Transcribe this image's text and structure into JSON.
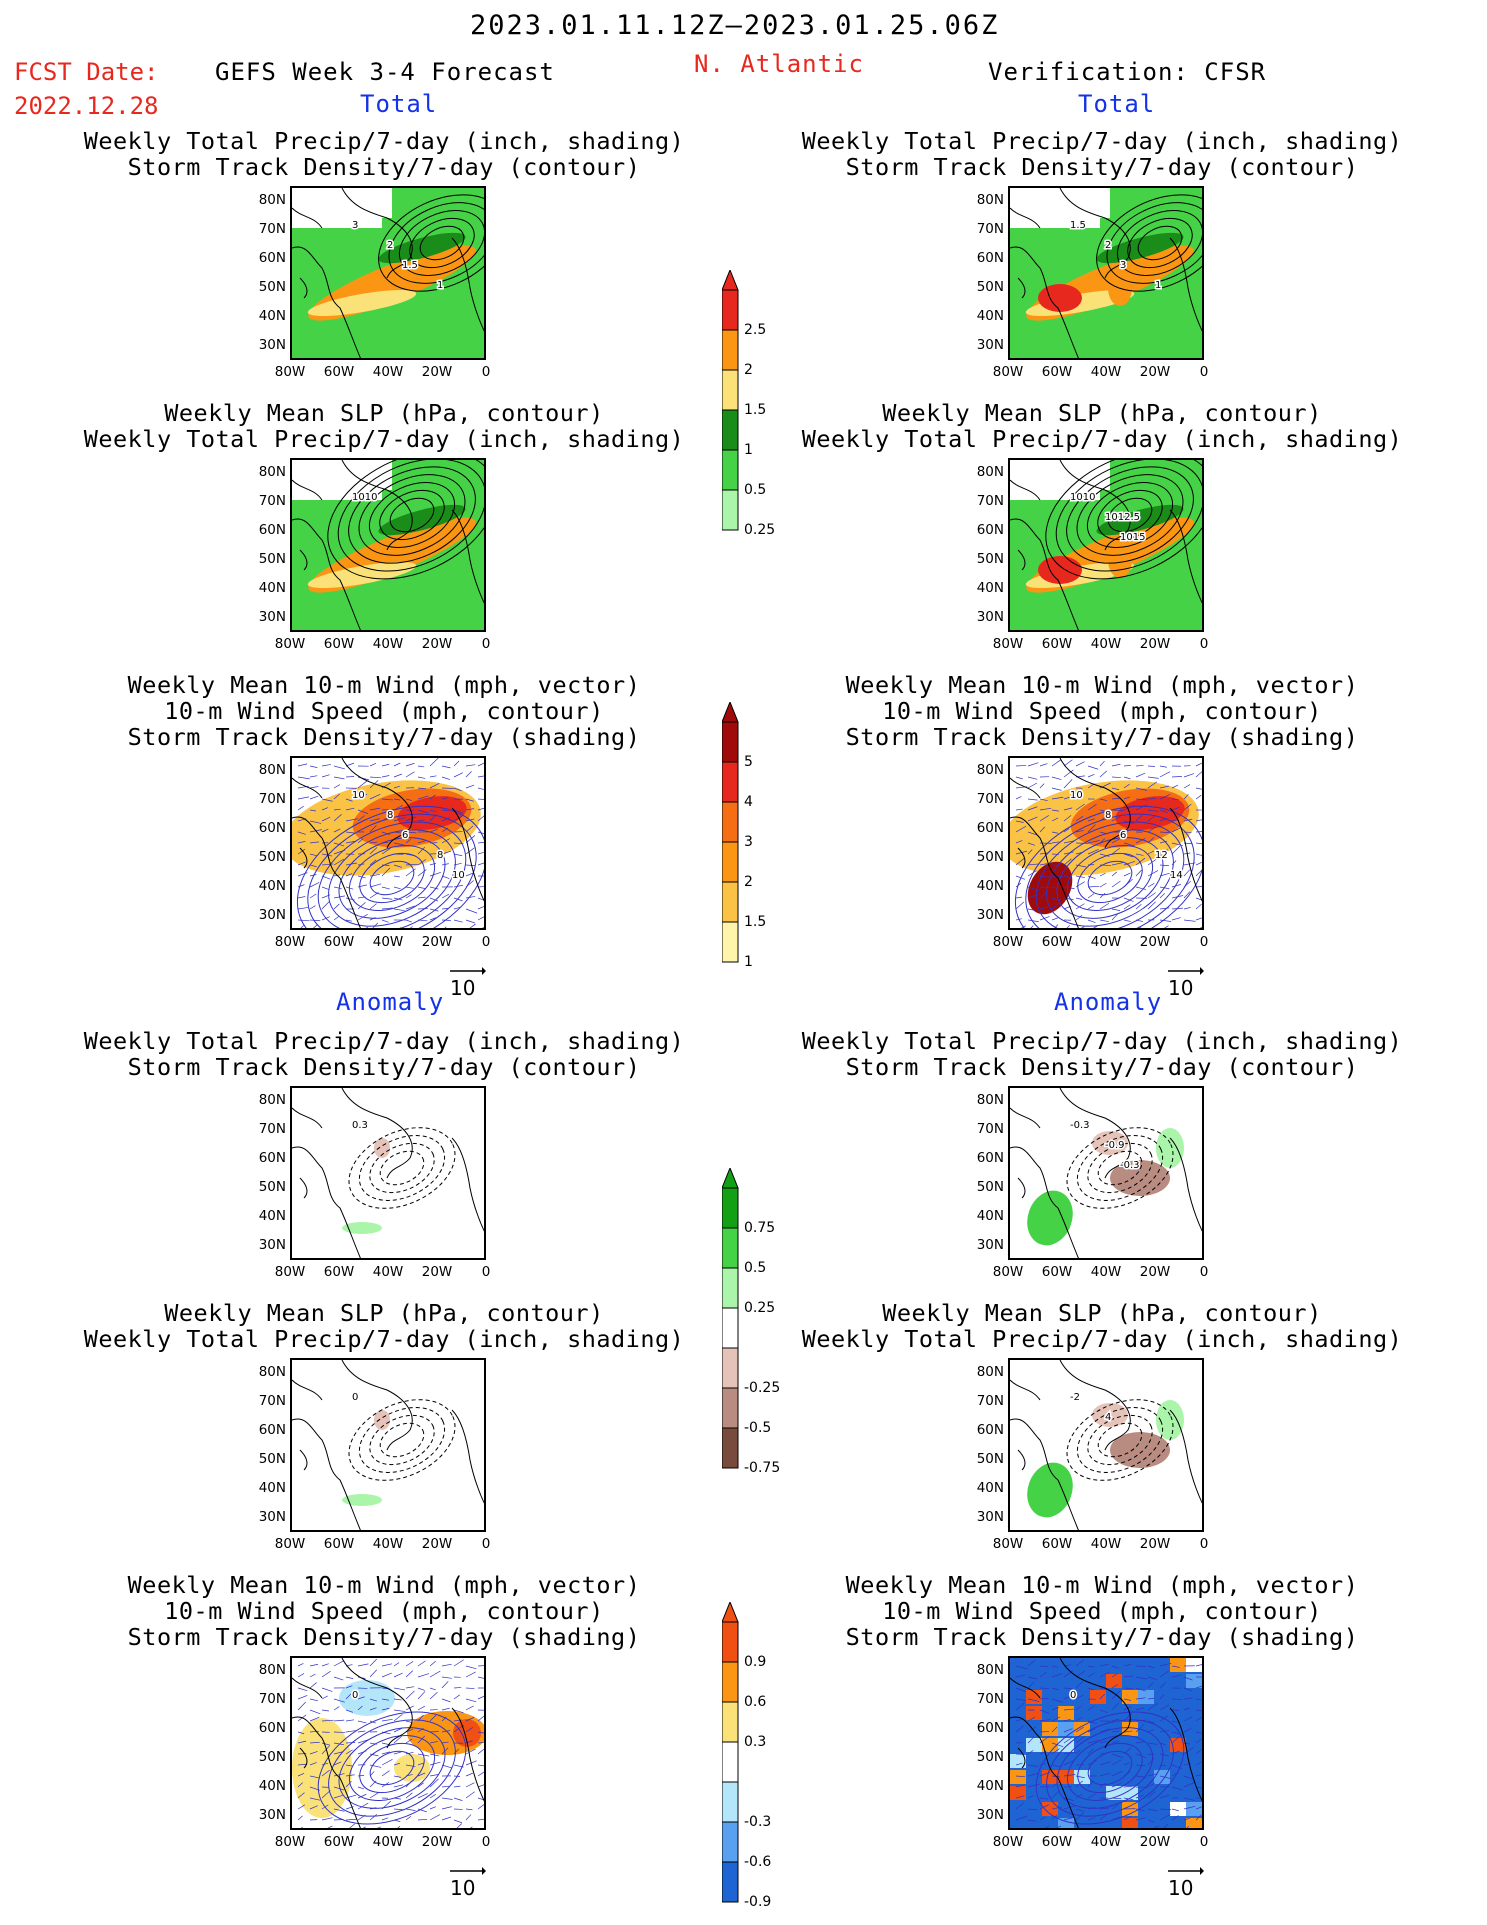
{
  "header": {
    "date_range": "2023.01.11.12Z—2023.01.25.06Z",
    "fcst_label": "FCST Date:",
    "fcst_date": "2022.12.28",
    "forecast_title": "GEFS Week 3-4 Forecast",
    "region": "N. Atlantic",
    "verification": "Verification: CFSR"
  },
  "sections": {
    "total_left": "Total",
    "total_right": "Total",
    "anomaly_left": "Anomaly",
    "anomaly_right": "Anomaly"
  },
  "titles": {
    "precip_storm": [
      "Weekly Total Precip/7-day (inch, shading)",
      "Storm Track Density/7-day (contour)"
    ],
    "slp_precip": [
      "Weekly Mean SLP (hPa, contour)",
      "Weekly Total Precip/7-day (inch, shading)"
    ],
    "wind_storm": [
      "Weekly Mean 10-m Wind (mph, vector)",
      "10-m Wind Speed (mph, contour)",
      "Storm Track Density/7-day (shading)"
    ]
  },
  "axes": {
    "lat": [
      "80N",
      "70N",
      "60N",
      "50N",
      "40N",
      "30N"
    ],
    "lon": [
      "80W",
      "60W",
      "40W",
      "20W",
      "0"
    ]
  },
  "vector_ref": "10",
  "colorbars": {
    "precip_total": {
      "labels": [
        "2.5",
        "2",
        "1.5",
        "1",
        "0.5",
        "0.25"
      ],
      "colors": [
        "#e6281e",
        "#fa9614",
        "#fae178",
        "#198c19",
        "#46d246",
        "#aaf5aa"
      ]
    },
    "storm_total": {
      "labels": [
        "5",
        "4",
        "3",
        "2",
        "1.5",
        "1"
      ],
      "colors": [
        "#a00a0a",
        "#e6281e",
        "#f56e14",
        "#fa9614",
        "#fac346",
        "#fff5aa"
      ]
    },
    "precip_anom": {
      "labels": [
        "0.75",
        "0.5",
        "0.25",
        "-0.25",
        "-0.5",
        "-0.75"
      ],
      "colors": [
        "#14a014",
        "#46d246",
        "#aaf5aa",
        "#ffffff",
        "#e6c3b9",
        "#b98c82",
        "#784b3c"
      ]
    },
    "storm_anom": {
      "labels": [
        "0.9",
        "0.6",
        "0.3",
        "-0.3",
        "-0.6",
        "-0.9"
      ],
      "colors": [
        "#f05014",
        "#fa9614",
        "#fae178",
        "#ffffff",
        "#b4e6fa",
        "#5aa0f0",
        "#1e64d2"
      ]
    }
  },
  "panel_labels": {
    "l1": [
      "3",
      "2",
      "1.5",
      "1"
    ],
    "r1": [
      "1.5",
      "2",
      "3",
      "1"
    ],
    "l2": [
      "1010"
    ],
    "r2": [
      "1010",
      "1012.5",
      "1015"
    ],
    "l3": [
      "10",
      "8",
      "6",
      "8",
      "10"
    ],
    "r3": [
      "10",
      "8",
      "6",
      "12",
      "14"
    ],
    "l4": [
      "0.3"
    ],
    "r4": [
      "-0.3",
      "-0.9",
      "-0.3"
    ],
    "l5": [
      "0"
    ],
    "r5": [
      "-2",
      "4"
    ],
    "l6": [
      "0"
    ],
    "r6": [
      "0"
    ]
  }
}
